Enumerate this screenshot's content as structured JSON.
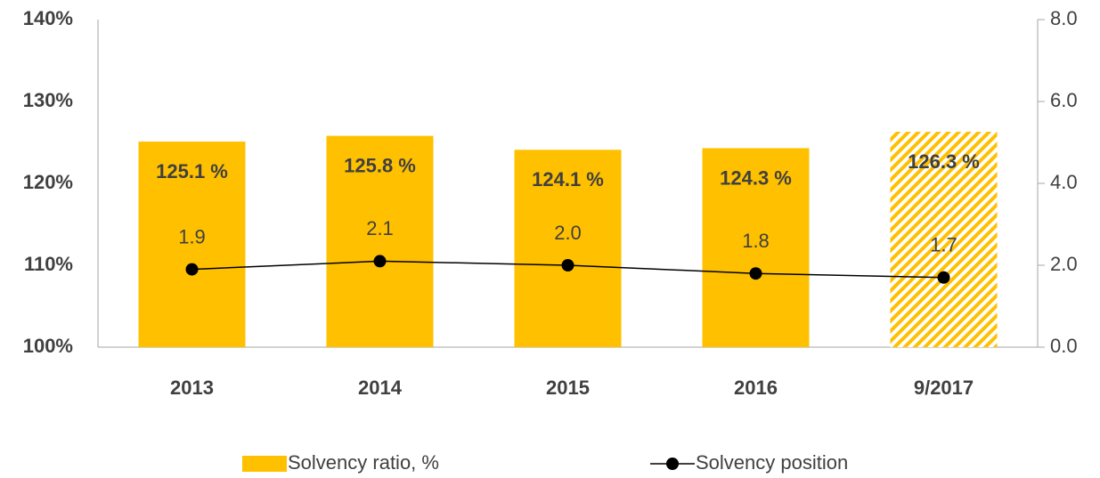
{
  "chart_data": {
    "type": "bar",
    "categories": [
      "2013",
      "2014",
      "2015",
      "2016",
      "9/2017"
    ],
    "series": [
      {
        "name": "Solvency ratio, %",
        "type": "bar",
        "color": "#ffc000",
        "values": [
          125.1,
          125.8,
          124.1,
          124.3,
          126.3
        ],
        "value_labels": [
          "125.1 %",
          "125.8 %",
          "124.1 %",
          "124.3 %",
          "126.3 %"
        ],
        "hatched": [
          false,
          false,
          false,
          false,
          true
        ]
      },
      {
        "name": "Solvency position",
        "type": "line",
        "axis": "y2",
        "color": "#000000",
        "values": [
          1.9,
          2.1,
          2.0,
          1.8,
          1.7
        ],
        "value_labels": [
          "1.9",
          "2.1",
          "2.0",
          "1.8",
          "1.7"
        ]
      }
    ],
    "ylim": [
      100,
      140
    ],
    "yticks": [
      {
        "value": 100,
        "label": "100%"
      },
      {
        "value": 110,
        "label": "110%"
      },
      {
        "value": 120,
        "label": "120%"
      },
      {
        "value": 130,
        "label": "130%"
      },
      {
        "value": 140,
        "label": "140%"
      }
    ],
    "y2lim": [
      0,
      8
    ],
    "y2ticks": [
      {
        "value": 0,
        "label": "0.0"
      },
      {
        "value": 2,
        "label": "2.0"
      },
      {
        "value": 4,
        "label": "4.0"
      },
      {
        "value": 6,
        "label": "6.0"
      },
      {
        "value": 8,
        "label": "8.0"
      }
    ],
    "grid": false,
    "legend": "bottom"
  }
}
